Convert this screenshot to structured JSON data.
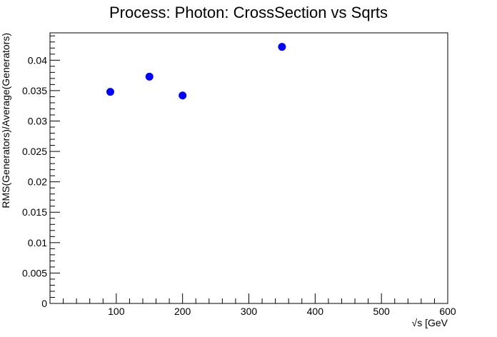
{
  "chart_data": {
    "type": "scatter",
    "title": "Process: Photon: CrossSection vs Sqrts",
    "xlabel": "√s [GeV",
    "ylabel": "RMS(Generators)/Average(Generators)",
    "xlim": [
      0,
      600
    ],
    "ylim": [
      0,
      0.0445
    ],
    "x_ticks": [
      100,
      200,
      300,
      400,
      500,
      600
    ],
    "x_tick_labels": [
      "100",
      "200",
      "300",
      "400",
      "500",
      "600"
    ],
    "y_ticks": [
      0,
      0.005,
      0.01,
      0.015,
      0.02,
      0.025,
      0.03,
      0.035,
      0.04
    ],
    "y_tick_labels": [
      "0",
      "0.005",
      "0.01",
      "0.015",
      "0.02",
      "0.025",
      "0.03",
      "0.035",
      "0.04"
    ],
    "grid": false,
    "legend": "none",
    "marker_color": "#0000ff",
    "series": [
      {
        "points": [
          {
            "x": 91,
            "y": 0.0348
          },
          {
            "x": 150,
            "y": 0.0373
          },
          {
            "x": 200,
            "y": 0.0342
          },
          {
            "x": 350,
            "y": 0.0422
          }
        ]
      }
    ]
  }
}
